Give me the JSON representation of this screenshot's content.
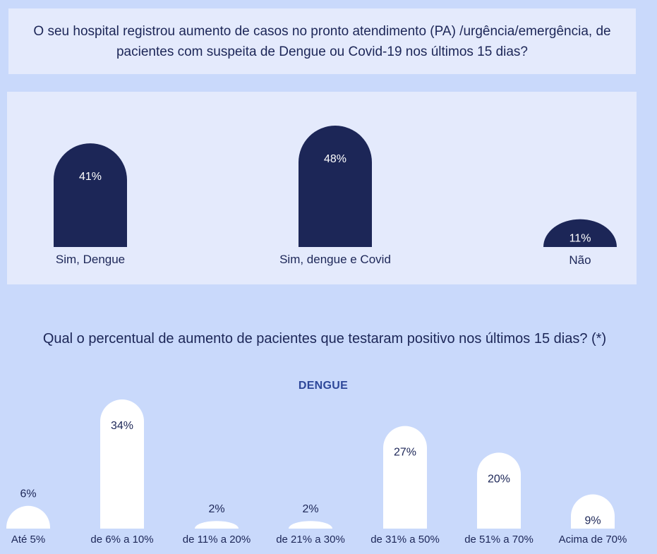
{
  "chart_data": [
    {
      "type": "bar",
      "title": "O seu hospital registrou aumento de casos no pronto atendimento (PA) /urgência/emergência, de pacientes com suspeita de Dengue ou Covid-19 nos últimos 15 dias?",
      "categories": [
        "Sim, Dengue",
        "Sim, dengue e Covid",
        "Não"
      ],
      "values": [
        41,
        48,
        11
      ],
      "value_labels": [
        "41%",
        "48%",
        "11%"
      ],
      "ylim": [
        0,
        48
      ],
      "grid": false,
      "bar_color": "#1c2657",
      "label_color": "#ffffff"
    },
    {
      "type": "bar",
      "title": "Qual o percentual de aumento de pacientes que testaram positivo nos últimos 15 dias? (*)",
      "series_label": "DENGUE",
      "categories": [
        "Até 5%",
        "de 6% a 10%",
        "de 11% a 20%",
        "de 21% a 30%",
        "de 31% a 50%",
        "de 51% a 70%",
        "Acima de 70%"
      ],
      "values": [
        6,
        34,
        2,
        2,
        27,
        20,
        9
      ],
      "value_labels": [
        "6%",
        "34%",
        "2%",
        "2%",
        "27%",
        "20%",
        "9%"
      ],
      "ylim": [
        0,
        34
      ],
      "grid": false,
      "bar_color": "#ffffff",
      "label_color": "#1c2657"
    }
  ]
}
